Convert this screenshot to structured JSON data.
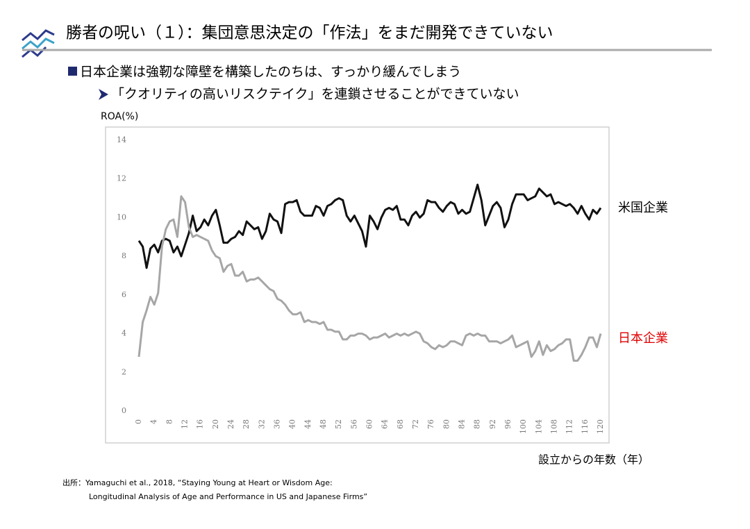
{
  "header": {
    "title": "勝者の呪い（１）：集団意思決定の「作法」をまだ開発できていない"
  },
  "bullets": [
    "日本企業は強靭な障壁を構築したのちは、すっかり緩んでしまう",
    "「クオリティの高いリスクテイク」を連鎖させることができていない"
  ],
  "source": [
    "出所：Yamaguchi et al., 2018, “Staying Young at Heart or Wisdom Age:",
    "Longitudinal Analysis of Age and Performance in US and Japanese Firms”"
  ],
  "chart_data": {
    "type": "line",
    "ylabel": "ROA(%)",
    "xlabel": "設立からの年数（年）",
    "x": [
      0,
      1,
      2,
      3,
      4,
      5,
      6,
      7,
      8,
      9,
      10,
      11,
      12,
      13,
      14,
      15,
      16,
      17,
      18,
      19,
      20,
      21,
      22,
      23,
      24,
      25,
      26,
      27,
      28,
      29,
      30,
      31,
      32,
      33,
      34,
      35,
      36,
      37,
      38,
      39,
      40,
      41,
      42,
      43,
      44,
      45,
      46,
      47,
      48,
      49,
      50,
      51,
      52,
      53,
      54,
      55,
      56,
      57,
      58,
      59,
      60,
      61,
      62,
      63,
      64,
      65,
      66,
      67,
      68,
      69,
      70,
      71,
      72,
      73,
      74,
      75,
      76,
      77,
      78,
      79,
      80,
      81,
      82,
      83,
      84,
      85,
      86,
      87,
      88,
      89,
      90,
      91,
      92,
      93,
      94,
      95,
      96,
      97,
      98,
      99,
      100,
      101,
      102,
      103,
      104,
      105,
      106,
      107,
      108,
      109,
      110,
      111,
      112,
      113,
      114,
      115,
      116,
      117,
      118,
      119,
      120
    ],
    "series": [
      {
        "name": "米国企業",
        "color": "#111111",
        "label_color": "#000000",
        "values": [
          8.8,
          8.5,
          7.4,
          8.4,
          8.6,
          8.2,
          8.8,
          8.9,
          8.8,
          8.2,
          8.5,
          8.0,
          8.6,
          9.2,
          10.1,
          9.3,
          9.5,
          9.9,
          9.6,
          10.1,
          10.4,
          9.6,
          8.7,
          8.7,
          8.9,
          9.0,
          9.3,
          9.1,
          9.8,
          9.6,
          9.4,
          9.5,
          8.9,
          9.3,
          10.2,
          9.9,
          9.8,
          9.2,
          10.7,
          10.8,
          10.8,
          10.9,
          10.3,
          10.1,
          10.1,
          10.1,
          10.6,
          10.5,
          10.1,
          10.6,
          10.7,
          10.9,
          11.0,
          10.9,
          10.1,
          9.8,
          10.1,
          9.7,
          9.3,
          8.5,
          10.1,
          9.8,
          9.4,
          10.0,
          10.4,
          10.5,
          10.4,
          10.6,
          9.9,
          9.9,
          9.6,
          10.1,
          10.3,
          10.0,
          10.2,
          10.9,
          10.8,
          10.8,
          10.5,
          10.3,
          10.6,
          10.8,
          10.7,
          10.2,
          10.4,
          10.2,
          10.3,
          11.0,
          11.7,
          10.9,
          9.6,
          10.1,
          10.6,
          10.8,
          10.5,
          9.5,
          9.9,
          10.7,
          11.2,
          11.2,
          11.2,
          10.9,
          11.0,
          11.1,
          11.5,
          11.3,
          11.1,
          11.2,
          10.7,
          10.8,
          10.7,
          10.6,
          10.7,
          10.5,
          10.2,
          10.6,
          10.2,
          9.9,
          10.4,
          10.2,
          10.5
        ]
      },
      {
        "name": "日本企業",
        "color": "#a6a6a6",
        "label_color": "#e00000",
        "values": [
          2.8,
          4.6,
          5.2,
          5.9,
          5.5,
          6.1,
          8.5,
          9.4,
          9.8,
          9.9,
          9.0,
          11.1,
          10.8,
          9.5,
          9.0,
          9.1,
          9.0,
          8.9,
          8.8,
          8.3,
          8.0,
          7.9,
          7.2,
          7.5,
          7.6,
          7.0,
          7.0,
          7.2,
          6.7,
          6.8,
          6.8,
          6.9,
          6.7,
          6.5,
          6.3,
          6.2,
          5.8,
          5.7,
          5.5,
          5.2,
          5.0,
          5.0,
          5.1,
          4.6,
          4.7,
          4.6,
          4.6,
          4.5,
          4.6,
          4.2,
          4.2,
          4.1,
          4.1,
          3.7,
          3.7,
          3.9,
          3.9,
          4.0,
          4.0,
          3.9,
          3.7,
          3.8,
          3.8,
          3.9,
          4.0,
          3.8,
          3.9,
          4.0,
          3.9,
          4.0,
          3.9,
          4.0,
          4.1,
          4.0,
          3.6,
          3.5,
          3.3,
          3.2,
          3.4,
          3.3,
          3.4,
          3.6,
          3.6,
          3.5,
          3.4,
          3.9,
          4.0,
          3.9,
          4.0,
          3.9,
          3.9,
          3.6,
          3.6,
          3.6,
          3.5,
          3.6,
          3.7,
          3.9,
          3.3,
          3.4,
          3.5,
          3.6,
          2.8,
          3.1,
          3.6,
          2.9,
          3.4,
          3.1,
          3.2,
          3.4,
          3.5,
          3.7,
          3.7,
          2.6,
          2.6,
          2.9,
          3.3,
          3.8,
          3.8,
          3.3,
          4.0
        ]
      }
    ],
    "xlim": [
      0,
      120
    ],
    "xticks": [
      0,
      4,
      8,
      12,
      16,
      20,
      24,
      28,
      32,
      36,
      40,
      44,
      48,
      52,
      56,
      60,
      64,
      68,
      72,
      76,
      80,
      84,
      88,
      92,
      96,
      100,
      104,
      108,
      112,
      116,
      120
    ],
    "ylim": [
      0,
      14
    ],
    "yticks": [
      0,
      2,
      4,
      6,
      8,
      10,
      12,
      14
    ],
    "grid": false
  }
}
